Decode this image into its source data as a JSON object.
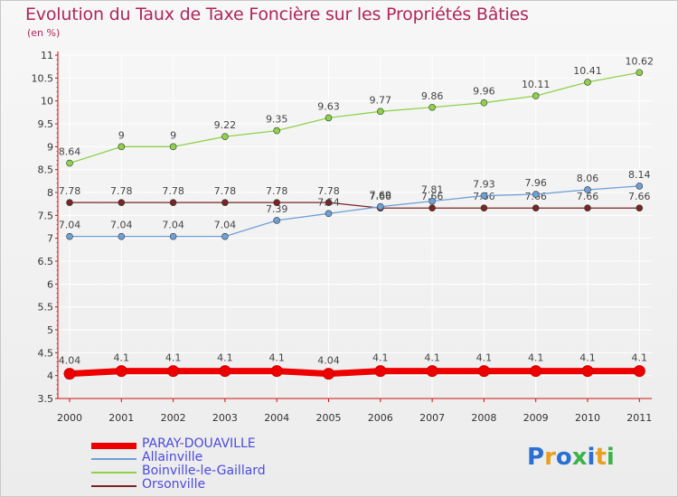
{
  "title": "Evolution du Taux de Taxe Foncière sur les Propriétés Bâties",
  "unit": "(en %)",
  "logo": {
    "text": "Proxiti",
    "colors": [
      "#2a6fd1",
      "#e8a020",
      "#2a6fd1",
      "#3bb24a",
      "#2a6fd1",
      "#e8a020",
      "#3bb24a"
    ]
  },
  "chart_data": {
    "type": "line",
    "x": [
      2000,
      2001,
      2002,
      2003,
      2004,
      2005,
      2006,
      2007,
      2008,
      2009,
      2010,
      2011
    ],
    "xlabels": [
      "2000",
      "2001",
      "2002",
      "2003",
      "2004",
      "2005",
      "2006",
      "2007",
      "2008",
      "2009",
      "2010",
      "2011"
    ],
    "ylim": [
      3.5,
      11
    ],
    "yticks": [
      3.5,
      4,
      4.5,
      5,
      5.5,
      6,
      6.5,
      7,
      7.5,
      8,
      8.5,
      9,
      9.5,
      10,
      10.5,
      11
    ],
    "yticklabels": [
      "3.5",
      "4",
      "4.5",
      "5",
      "5.5",
      "6",
      "6.5",
      "7",
      "7.5",
      "8",
      "8.5",
      "9",
      "9.5",
      "10",
      "10.5",
      "11"
    ],
    "grid": true,
    "legend_position": "bottom-left",
    "series": [
      {
        "name": "Boinville-le-Gaillard",
        "color": "#8fd24a",
        "label_color": "#444444",
        "values": [
          8.64,
          9,
          9,
          9.22,
          9.35,
          9.63,
          9.77,
          9.86,
          9.96,
          10.11,
          10.41,
          10.62
        ],
        "labels": [
          "8.64",
          "9",
          "9",
          "9.22",
          "9.35",
          "9.63",
          "9.77",
          "9.86",
          "9.96",
          "10.11",
          "10.41",
          "10.62"
        ]
      },
      {
        "name": "Orsonville",
        "color": "#7a2424",
        "label_color": "#444444",
        "values": [
          7.78,
          7.78,
          7.78,
          7.78,
          7.78,
          7.78,
          7.66,
          7.66,
          7.66,
          7.66,
          7.66,
          7.66
        ],
        "labels": [
          "7.78",
          "7.78",
          "7.78",
          "7.78",
          "7.78",
          "7.78",
          "7.66",
          "7.66",
          "7.66",
          "7.66",
          "7.66",
          "7.66"
        ]
      },
      {
        "name": "Allainville",
        "color": "#6fa0d8",
        "label_color": "#444444",
        "values": [
          7.04,
          7.04,
          7.04,
          7.04,
          7.39,
          7.54,
          7.69,
          7.81,
          7.93,
          7.96,
          8.06,
          8.14
        ],
        "labels": [
          "7.04",
          "7.04",
          "7.04",
          "7.04",
          "7.39",
          "7.54",
          "7.69",
          "7.81",
          "7.93",
          "7.96",
          "8.06",
          "8.14"
        ]
      },
      {
        "name": "PARAY-DOUAVILLE",
        "color": "#ee0000",
        "label_color": "#444444",
        "values": [
          4.04,
          4.1,
          4.1,
          4.1,
          4.1,
          4.04,
          4.1,
          4.1,
          4.1,
          4.1,
          4.1,
          4.1
        ],
        "labels": [
          "4.04",
          "4.1",
          "4.1",
          "4.1",
          "4.1",
          "4.04",
          "4.1",
          "4.1",
          "4.1",
          "4.1",
          "4.1",
          "4.1"
        ]
      }
    ],
    "legend": [
      {
        "name": "PARAY-DOUAVILLE",
        "color": "#ee0000",
        "text_color": "#4a4ae0",
        "width": 7
      },
      {
        "name": "Allainville",
        "color": "#6fa0d8",
        "text_color": "#4a4ae0",
        "width": 2
      },
      {
        "name": "Boinville-le-Gaillard",
        "color": "#8fd24a",
        "text_color": "#4a4ae0",
        "width": 2
      },
      {
        "name": "Orsonville",
        "color": "#7a2424",
        "text_color": "#4a4ae0",
        "width": 2
      }
    ]
  }
}
